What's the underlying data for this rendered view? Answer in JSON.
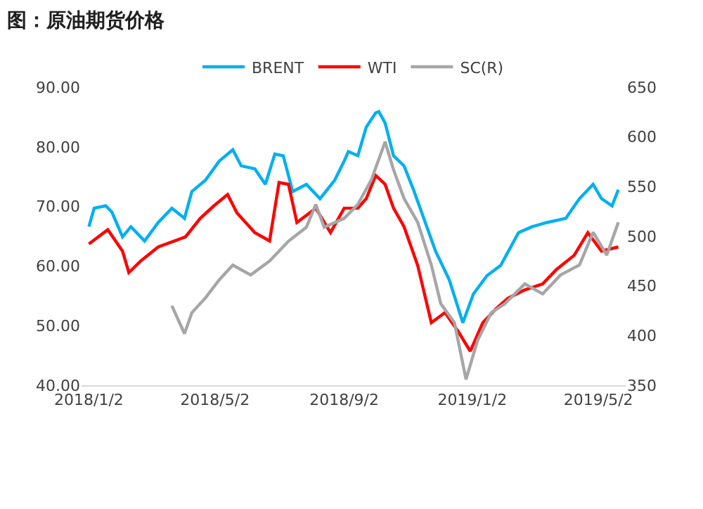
{
  "chart_data": {
    "type": "line",
    "title": "图：原油期货价格",
    "xlim": [
      "2017-12-26",
      "2019-05-28"
    ],
    "xticks": [
      {
        "value": "2018-01-02",
        "label": "2018/1/2"
      },
      {
        "value": "2018-05-02",
        "label": "2018/5/2"
      },
      {
        "value": "2018-09-02",
        "label": "2018/9/2"
      },
      {
        "value": "2019-01-02",
        "label": "2019/1/2"
      },
      {
        "value": "2019-05-02",
        "label": "2019/5/2"
      }
    ],
    "ylim": [
      40,
      90
    ],
    "yticks": [
      {
        "value": 40,
        "label": "40.00"
      },
      {
        "value": 50,
        "label": "50.00"
      },
      {
        "value": 60,
        "label": "60.00"
      },
      {
        "value": 70,
        "label": "70.00"
      },
      {
        "value": 80,
        "label": "80.00"
      },
      {
        "value": 90,
        "label": "90.00"
      }
    ],
    "y2lim": [
      350,
      650
    ],
    "y2ticks": [
      350,
      400,
      450,
      500,
      550,
      600,
      650
    ],
    "legend": "top",
    "marker": "none",
    "line_style": "solid",
    "series": [
      {
        "name": "BRENT",
        "color": "#00b0f0",
        "x": [
          "2018-01-02",
          "2018-01-07",
          "2018-01-18",
          "2018-01-24",
          "2018-02-03",
          "2018-02-11",
          "2018-02-24",
          "2018-03-09",
          "2018-03-22",
          "2018-04-03",
          "2018-04-10",
          "2018-04-23",
          "2018-05-06",
          "2018-05-19",
          "2018-05-27",
          "2018-06-09",
          "2018-06-19",
          "2018-06-28",
          "2018-07-06",
          "2018-07-15",
          "2018-07-28",
          "2018-08-10",
          "2018-08-24",
          "2018-09-02",
          "2018-09-06",
          "2018-09-15",
          "2018-09-23",
          "2018-10-02",
          "2018-10-05",
          "2018-10-11",
          "2018-10-19",
          "2018-10-29",
          "2018-11-07",
          "2018-11-15",
          "2018-11-28",
          "2018-12-11",
          "2018-12-24",
          "2019-01-03",
          "2019-01-16",
          "2019-01-29",
          "2019-02-15",
          "2019-02-28",
          "2019-03-14",
          "2019-04-01",
          "2019-04-14",
          "2019-04-27",
          "2019-05-05",
          "2019-05-15",
          "2019-05-21"
        ],
        "values": [
          66.6,
          69.7,
          70.1,
          69,
          64.9,
          66.6,
          64.2,
          67.3,
          69.7,
          68,
          72.5,
          74.4,
          77.6,
          79.5,
          76.8,
          76.3,
          73.7,
          78.8,
          78.5,
          72.5,
          73.7,
          71.3,
          74.4,
          77.6,
          79.2,
          78.5,
          83.3,
          85.7,
          85.9,
          84,
          78.5,
          76.8,
          72.8,
          68.9,
          62.5,
          57.7,
          50.5,
          55.3,
          58.4,
          60.1,
          65.6,
          66.6,
          67.3,
          68,
          71.3,
          73.7,
          71.3,
          70.1,
          72.8
        ]
      },
      {
        "name": "WTI",
        "color": "#ff0000",
        "x": [
          "2018-01-02",
          "2018-01-20",
          "2018-02-03",
          "2018-02-09",
          "2018-02-20",
          "2018-03-09",
          "2018-04-04",
          "2018-04-18",
          "2018-05-01",
          "2018-05-14",
          "2018-05-23",
          "2018-06-09",
          "2018-06-23",
          "2018-07-02",
          "2018-07-11",
          "2018-07-19",
          "2018-08-06",
          "2018-08-20",
          "2018-09-02",
          "2018-09-15",
          "2018-09-23",
          "2018-10-02",
          "2018-10-11",
          "2018-10-19",
          "2018-10-29",
          "2018-11-11",
          "2018-11-24",
          "2018-12-07",
          "2018-12-20",
          "2018-12-31",
          "2019-01-12",
          "2019-01-25",
          "2019-02-05",
          "2019-02-21",
          "2019-03-10",
          "2019-03-23",
          "2019-04-09",
          "2019-04-22",
          "2019-05-05",
          "2019-05-21"
        ],
        "values": [
          63.7,
          66.1,
          62.5,
          58.9,
          60.8,
          63.2,
          64.9,
          68,
          70.1,
          72,
          68.9,
          65.6,
          64.2,
          74,
          73.7,
          67.3,
          69.7,
          65.6,
          69.7,
          69.7,
          71.3,
          75.2,
          73.7,
          69.7,
          66.6,
          60.1,
          50.5,
          52.2,
          48.9,
          45.7,
          50.5,
          52.9,
          54.6,
          56,
          57,
          59.4,
          61.8,
          65.6,
          62.5,
          63.2
        ]
      },
      {
        "name": "SC(R)",
        "color": "#a6a6a6",
        "axis": "y2",
        "x": [
          "2018-03-22",
          "2018-04-03",
          "2018-04-10",
          "2018-04-23",
          "2018-05-06",
          "2018-05-19",
          "2018-06-05",
          "2018-06-23",
          "2018-07-11",
          "2018-07-28",
          "2018-08-06",
          "2018-08-14",
          "2018-09-02",
          "2018-09-15",
          "2018-09-28",
          "2018-10-11",
          "2018-10-19",
          "2018-10-29",
          "2018-11-11",
          "2018-11-24",
          "2018-12-03",
          "2018-12-16",
          "2018-12-27",
          "2019-01-07",
          "2019-01-20",
          "2019-02-02",
          "2019-02-21",
          "2019-03-10",
          "2019-03-27",
          "2019-04-14",
          "2019-04-27",
          "2019-05-10",
          "2019-05-21"
        ],
        "values": [
          430,
          402,
          423,
          438,
          456,
          471,
          461,
          475,
          495,
          509,
          532,
          509,
          518,
          532,
          557,
          595,
          567,
          538,
          514,
          471,
          432,
          413,
          356,
          395,
          423,
          432,
          452,
          442,
          461,
          471,
          504,
          481,
          514
        ]
      }
    ]
  }
}
